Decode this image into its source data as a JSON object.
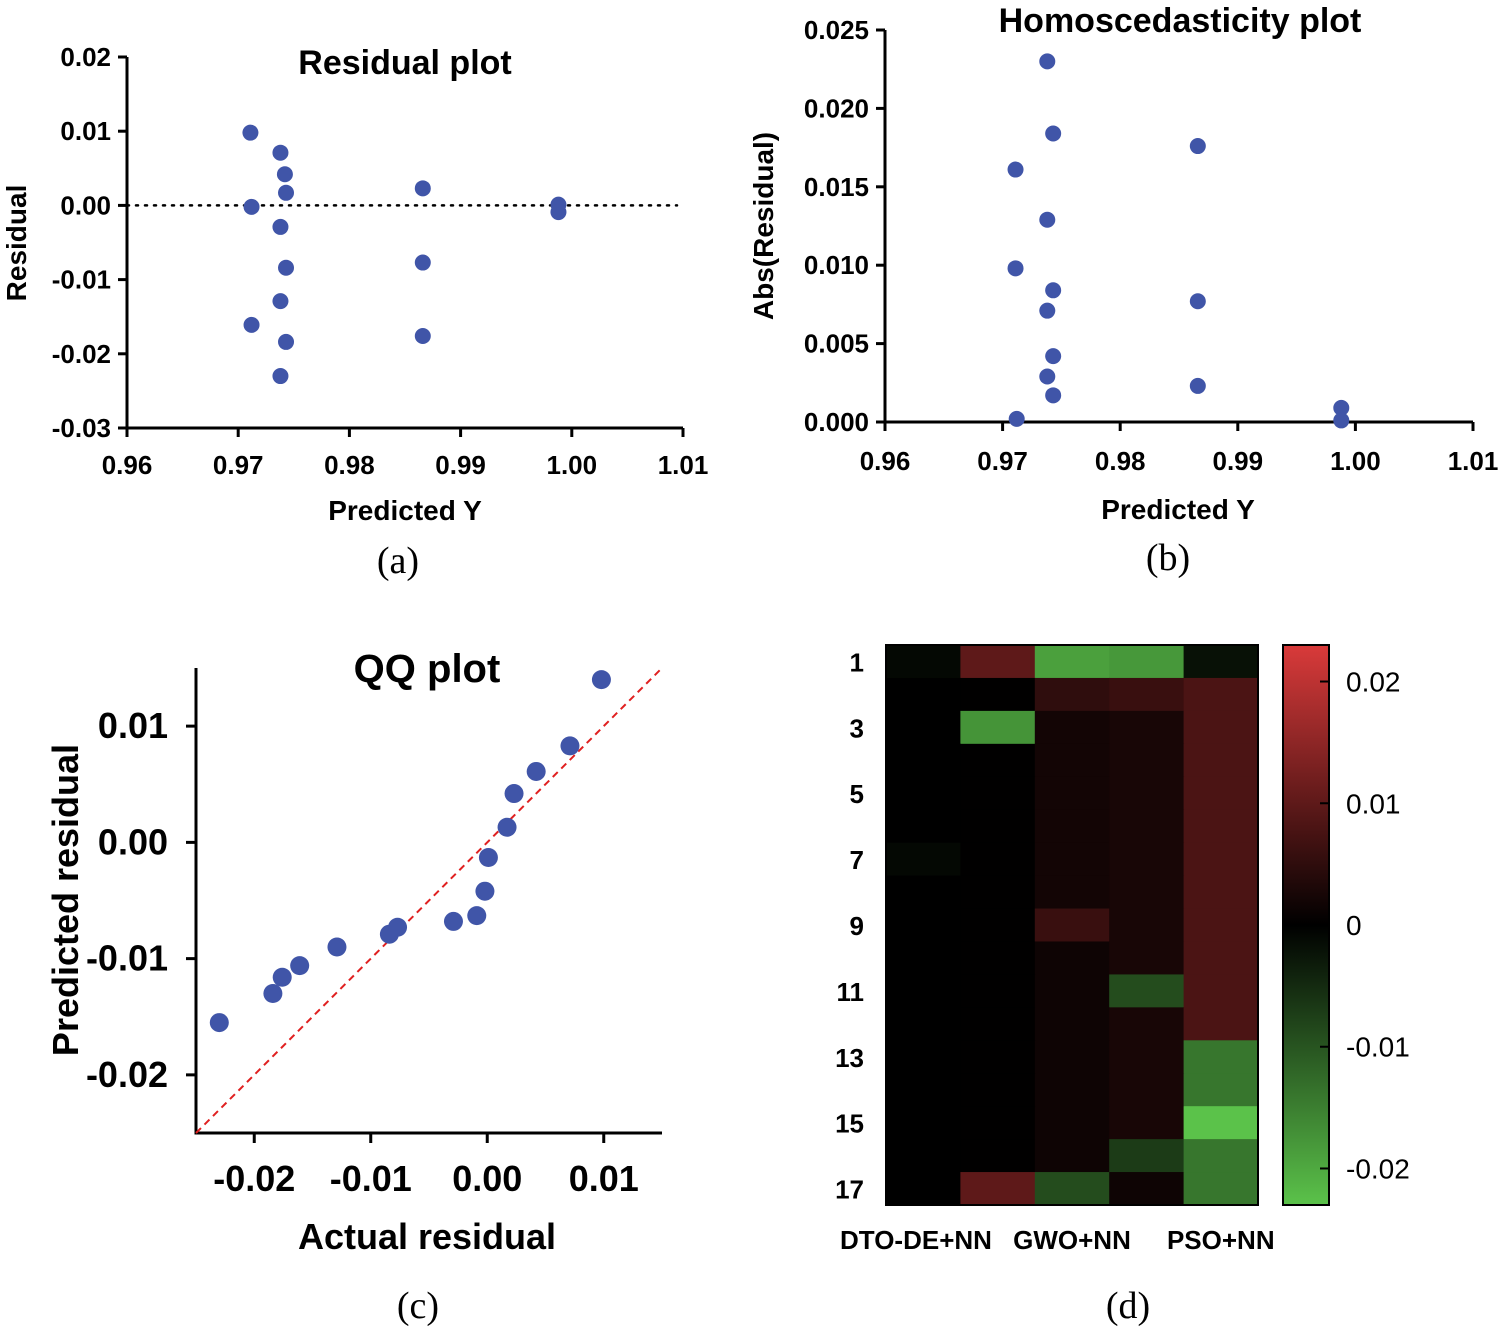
{
  "colors": {
    "point": "#4055a8",
    "zero_line": "#000000",
    "ref_line": "#e02020",
    "heat_pos": "#d93a3a",
    "heat_zero": "#000000",
    "heat_neg": "#5bc24a"
  },
  "chart_data": [
    {
      "id": "a",
      "type": "scatter",
      "title": "Residual plot",
      "xlabel": "Predicted Y",
      "ylabel": "Residual",
      "caption": "(a)",
      "xlim": [
        0.96,
        1.01
      ],
      "ylim": [
        -0.03,
        0.02
      ],
      "xticks": [
        "0.96",
        "0.97",
        "0.98",
        "0.99",
        "1.00",
        "1.01"
      ],
      "yticks": [
        "0.02",
        "0.01",
        "0.00",
        "-0.01",
        "-0.02",
        "-0.03"
      ],
      "reference_line": "y = 0 (dotted)",
      "points": [
        [
          0.9711,
          0.0098
        ],
        [
          0.9712,
          -0.0002
        ],
        [
          0.9712,
          -0.0161
        ],
        [
          0.9738,
          0.0071
        ],
        [
          0.9742,
          0.0042
        ],
        [
          0.9743,
          0.0017
        ],
        [
          0.9738,
          -0.0029
        ],
        [
          0.9743,
          -0.0084
        ],
        [
          0.9738,
          -0.0129
        ],
        [
          0.9743,
          -0.0184
        ],
        [
          0.9738,
          -0.023
        ],
        [
          0.9866,
          0.0023
        ],
        [
          0.9866,
          -0.0077
        ],
        [
          0.9866,
          -0.0176
        ],
        [
          0.9988,
          0.0001
        ],
        [
          0.9988,
          -0.0009
        ]
      ]
    },
    {
      "id": "b",
      "type": "scatter",
      "title": "Homoscedasticity plot",
      "xlabel": "Predicted Y",
      "ylabel": "Abs(Residual)",
      "caption": "(b)",
      "xlim": [
        0.96,
        1.01
      ],
      "ylim": [
        0,
        0.025
      ],
      "xticks": [
        "0.96",
        "0.97",
        "0.98",
        "0.99",
        "1.00",
        "1.01"
      ],
      "yticks": [
        "0.025",
        "0.020",
        "0.015",
        "0.010",
        "0.005",
        "0.000"
      ],
      "points": [
        [
          0.9738,
          0.023
        ],
        [
          0.9743,
          0.0184
        ],
        [
          0.9711,
          0.0161
        ],
        [
          0.9738,
          0.0129
        ],
        [
          0.9711,
          0.0098
        ],
        [
          0.9743,
          0.0084
        ],
        [
          0.9738,
          0.0071
        ],
        [
          0.9743,
          0.0042
        ],
        [
          0.9738,
          0.0029
        ],
        [
          0.9743,
          0.0017
        ],
        [
          0.9712,
          0.0002
        ],
        [
          0.9866,
          0.0176
        ],
        [
          0.9866,
          0.0077
        ],
        [
          0.9866,
          0.0023
        ],
        [
          0.9988,
          0.0009
        ],
        [
          0.9988,
          0.0001
        ]
      ]
    },
    {
      "id": "c",
      "type": "scatter",
      "title": "QQ plot",
      "xlabel": "Actual residual",
      "ylabel": "Predicted residual",
      "caption": "(c)",
      "xlim": [
        -0.025,
        0.015
      ],
      "ylim": [
        -0.025,
        0.015
      ],
      "xticks": [
        "-0.02",
        "-0.01",
        "0.00",
        "0.01"
      ],
      "yticks": [
        "0.01",
        "0.00",
        "-0.01",
        "-0.02"
      ],
      "reference_line": "y = x (red dashed)",
      "points": [
        [
          -0.023,
          -0.0155
        ],
        [
          -0.0184,
          -0.013
        ],
        [
          -0.0176,
          -0.0116
        ],
        [
          -0.0161,
          -0.0106
        ],
        [
          -0.0129,
          -0.009
        ],
        [
          -0.0084,
          -0.0079
        ],
        [
          -0.0077,
          -0.0073
        ],
        [
          -0.0029,
          -0.0068
        ],
        [
          -0.0009,
          -0.0063
        ],
        [
          -0.0002,
          -0.0042
        ],
        [
          0.0001,
          -0.0013
        ],
        [
          0.0017,
          0.0013
        ],
        [
          0.0023,
          0.0042
        ],
        [
          0.0042,
          0.0061
        ],
        [
          0.0071,
          0.0083
        ],
        [
          0.0098,
          0.014
        ]
      ]
    },
    {
      "id": "d",
      "type": "heatmap",
      "caption": "(d)",
      "columns": [
        "DTO-DE+NN",
        "",
        "GWO+NN",
        "",
        "PSO+NN"
      ],
      "row_labels": [
        "1",
        "3",
        "5",
        "7",
        "9",
        "11",
        "13",
        "15",
        "17"
      ],
      "colorbar_ticks": [
        "0.02",
        "0.01",
        "0",
        "-0.01",
        "-0.02"
      ],
      "vmin": -0.023,
      "vmax": 0.023,
      "values": [
        [
          -0.001,
          0.01,
          -0.019,
          -0.018,
          -0.002
        ],
        [
          0.0,
          0.0001,
          0.005,
          0.006,
          0.008
        ],
        [
          0.0,
          -0.0175,
          0.002,
          0.0025,
          0.008
        ],
        [
          0.0,
          0.0001,
          0.002,
          0.0025,
          0.008
        ],
        [
          0.0,
          0.0001,
          0.002,
          0.0025,
          0.008
        ],
        [
          0.0,
          0.0001,
          0.002,
          0.0025,
          0.008
        ],
        [
          -0.001,
          0.0001,
          0.002,
          0.0025,
          0.008
        ],
        [
          0.0,
          0.0001,
          0.002,
          0.0025,
          0.008
        ],
        [
          0.0,
          0.0001,
          0.006,
          0.0025,
          0.008
        ],
        [
          0.0,
          0.0001,
          0.0015,
          0.0025,
          0.008
        ],
        [
          0.0,
          0.0001,
          0.0015,
          -0.009,
          0.008
        ],
        [
          0.0,
          0.0001,
          0.0015,
          0.0025,
          0.008
        ],
        [
          0.0,
          0.0001,
          0.0015,
          0.0025,
          -0.014
        ],
        [
          0.0,
          0.0001,
          0.0015,
          0.0025,
          -0.014
        ],
        [
          0.0,
          0.0001,
          0.0015,
          0.0025,
          -0.023
        ],
        [
          0.0,
          0.0001,
          0.0015,
          -0.007,
          -0.014
        ],
        [
          0.0,
          0.01,
          -0.009,
          0.0015,
          -0.014
        ]
      ]
    }
  ]
}
